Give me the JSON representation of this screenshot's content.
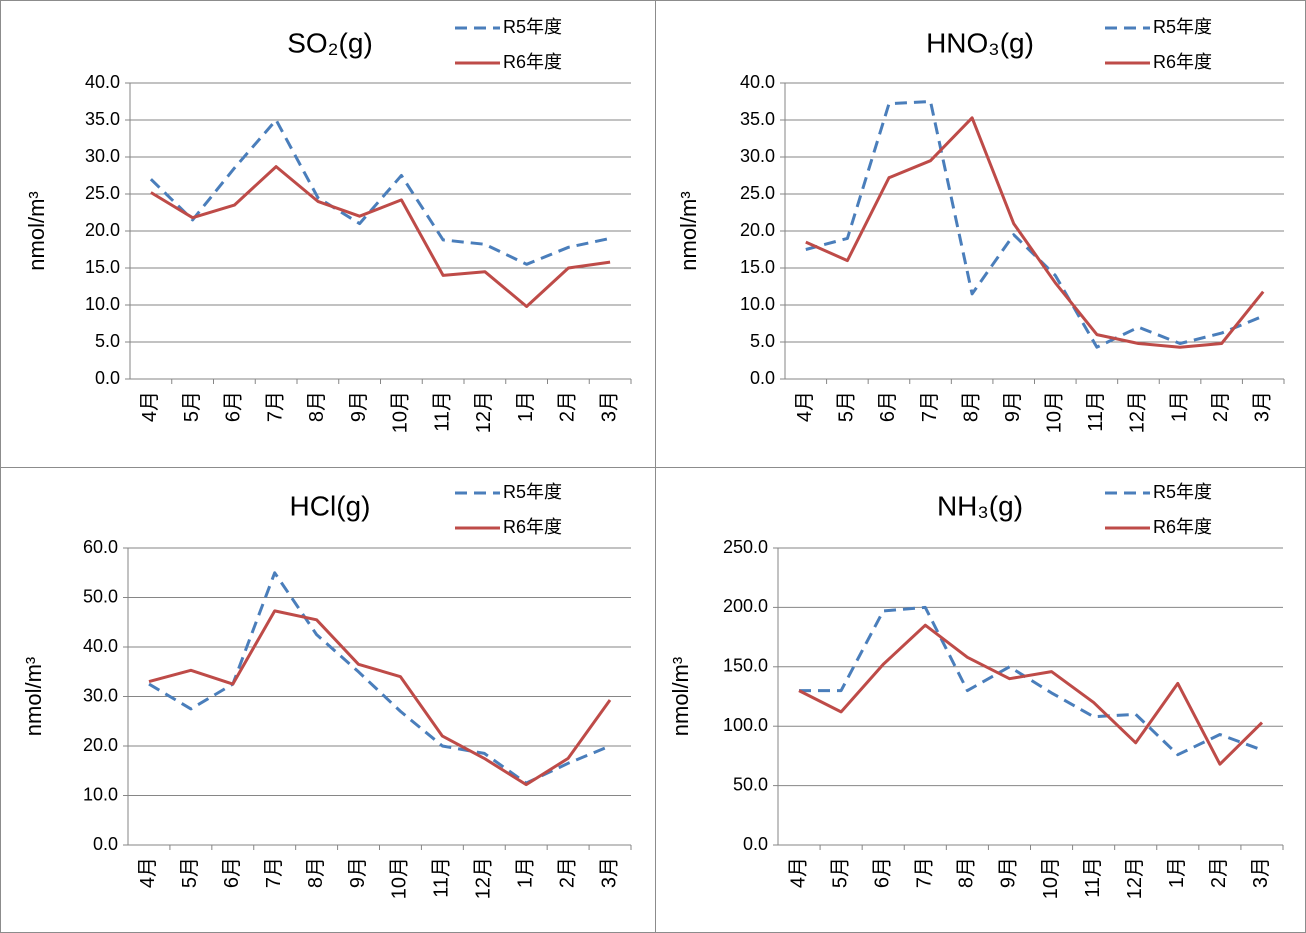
{
  "chart_data": [
    {
      "type": "line",
      "title": "SO₂(g)",
      "y_label": "nmol/m³",
      "categories": [
        "4月",
        "5月",
        "6月",
        "7月",
        "8月",
        "9月",
        "10月",
        "11月",
        "12月",
        "1月",
        "2月",
        "3月"
      ],
      "series": [
        {
          "name": "R5年度",
          "color": "#4a7ebb",
          "dashed": true,
          "values": [
            27,
            21.5,
            28.5,
            35,
            24.5,
            21,
            27.5,
            18.8,
            18.2,
            15.5,
            17.8,
            19
          ]
        },
        {
          "name": "R6年度",
          "color": "#be4b48",
          "dashed": false,
          "values": [
            25.2,
            21.8,
            23.5,
            28.7,
            24,
            22,
            24.2,
            14,
            14.5,
            9.8,
            15,
            15.8
          ]
        }
      ],
      "ylim": [
        0,
        40
      ],
      "yticks": [
        {
          "value": 0,
          "label": "0.0"
        },
        {
          "value": 5,
          "label": "5.0"
        },
        {
          "value": 10,
          "label": "10.0"
        },
        {
          "value": 15,
          "label": "15.0"
        },
        {
          "value": 20,
          "label": "20.0"
        },
        {
          "value": 25,
          "label": "25.0"
        },
        {
          "value": 30,
          "label": "30.0"
        },
        {
          "value": 35,
          "label": "35.0"
        },
        {
          "value": 40,
          "label": "40.0"
        }
      ],
      "grid": true
    },
    {
      "type": "line",
      "title": "HNO₃(g)",
      "y_label": "nmol/m³",
      "categories": [
        "4月",
        "5月",
        "6月",
        "7月",
        "8月",
        "9月",
        "10月",
        "11月",
        "12月",
        "1月",
        "2月",
        "3月"
      ],
      "series": [
        {
          "name": "R5年度",
          "color": "#4a7ebb",
          "dashed": true,
          "values": [
            17.5,
            19,
            37.2,
            37.5,
            11.5,
            19.5,
            14,
            4.3,
            7,
            4.8,
            6.2,
            8.5
          ]
        },
        {
          "name": "R6年度",
          "color": "#be4b48",
          "dashed": false,
          "values": [
            18.5,
            16,
            27.2,
            29.5,
            35.3,
            21,
            13,
            6,
            4.8,
            4.3,
            4.8,
            11.8
          ]
        }
      ],
      "ylim": [
        0,
        40
      ],
      "yticks": [
        {
          "value": 0,
          "label": "0.0"
        },
        {
          "value": 5,
          "label": "5.0"
        },
        {
          "value": 10,
          "label": "10.0"
        },
        {
          "value": 15,
          "label": "15.0"
        },
        {
          "value": 20,
          "label": "20.0"
        },
        {
          "value": 25,
          "label": "25.0"
        },
        {
          "value": 30,
          "label": "30.0"
        },
        {
          "value": 35,
          "label": "35.0"
        },
        {
          "value": 40,
          "label": "40.0"
        }
      ],
      "grid": true
    },
    {
      "type": "line",
      "title": "HCl(g)",
      "y_label": "nmol/m³",
      "categories": [
        "4月",
        "5月",
        "6月",
        "7月",
        "8月",
        "9月",
        "10月",
        "11月",
        "12月",
        "1月",
        "2月",
        "3月"
      ],
      "series": [
        {
          "name": "R5年度",
          "color": "#4a7ebb",
          "dashed": true,
          "values": [
            32.5,
            27.5,
            32.5,
            55,
            42.5,
            35,
            27,
            20,
            18.5,
            12.5,
            16.5,
            20
          ]
        },
        {
          "name": "R6年度",
          "color": "#be4b48",
          "dashed": false,
          "values": [
            33,
            35.3,
            32.5,
            47.3,
            45.5,
            36.5,
            34,
            22,
            17.5,
            12.2,
            17.5,
            29.3
          ]
        }
      ],
      "ylim": [
        0,
        60
      ],
      "yticks": [
        {
          "value": 0,
          "label": "0.0"
        },
        {
          "value": 10,
          "label": "10.0"
        },
        {
          "value": 20,
          "label": "20.0"
        },
        {
          "value": 30,
          "label": "30.0"
        },
        {
          "value": 40,
          "label": "40.0"
        },
        {
          "value": 50,
          "label": "50.0"
        },
        {
          "value": 60,
          "label": "60.0"
        }
      ],
      "grid": true
    },
    {
      "type": "line",
      "title": "NH₃(g)",
      "y_label": "nmol/m³",
      "categories": [
        "4月",
        "5月",
        "6月",
        "7月",
        "8月",
        "9月",
        "10月",
        "11月",
        "12月",
        "1月",
        "2月",
        "3月"
      ],
      "series": [
        {
          "name": "R5年度",
          "color": "#4a7ebb",
          "dashed": true,
          "values": [
            130,
            130,
            197,
            200,
            130,
            150,
            128,
            108,
            110,
            76,
            93,
            80
          ]
        },
        {
          "name": "R6年度",
          "color": "#be4b48",
          "dashed": false,
          "values": [
            130,
            112,
            152,
            185,
            158,
            140,
            146,
            120,
            86,
            136,
            68,
            103
          ]
        }
      ],
      "ylim": [
        0,
        250
      ],
      "yticks": [
        {
          "value": 0,
          "label": "0.0"
        },
        {
          "value": 50,
          "label": "50.0"
        },
        {
          "value": 100,
          "label": "100.0"
        },
        {
          "value": 150,
          "label": "150.0"
        },
        {
          "value": 200,
          "label": "200.0"
        },
        {
          "value": 250,
          "label": "250.0"
        }
      ],
      "grid": true
    }
  ]
}
